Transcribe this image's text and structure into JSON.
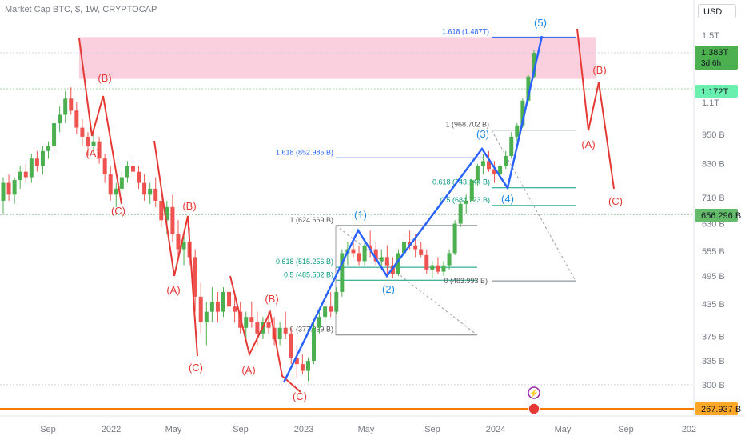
{
  "header": {
    "title": "Market Cap BTC, $, 1W, CRYPTOCAP",
    "currency_button": "USD"
  },
  "colors": {
    "up": "#26a69a",
    "up_bright": "#4caf50",
    "down": "#ef5350",
    "wave_blue": "#2962ff",
    "wave_red": "#e53935",
    "resistance_zone": "#f8bbd0",
    "support_line": "#f57c00",
    "green_level": "#4caf50"
  },
  "chart_data": {
    "type": "candlestick",
    "title": "Market Cap BTC, $, 1W, CRYPTOCAP",
    "y_scale": "log",
    "ylim": [
      282000000000,
      1620000000000
    ],
    "x_tick_labels": [
      "Sep",
      "2022",
      "May",
      "Sep",
      "2023",
      "May",
      "Sep",
      "2024",
      "May",
      "Sep",
      "202"
    ],
    "y_tick_labels": [
      {
        "label": "1.5T",
        "value": 1500000000000.0
      },
      {
        "label": "1.1T",
        "value": 1100000000000.0
      },
      {
        "label": "950 B",
        "value": 950000000000.0
      },
      {
        "label": "830 B",
        "value": 830000000000.0
      },
      {
        "label": "710 B",
        "value": 710000000000.0
      },
      {
        "label": "630 B",
        "value": 630000000000.0
      },
      {
        "label": "555 B",
        "value": 555000000000.0
      },
      {
        "label": "495 B",
        "value": 495000000000.0
      },
      {
        "label": "435 B",
        "value": 435000000000.0
      },
      {
        "label": "375 B",
        "value": 375000000000.0
      },
      {
        "label": "335 B",
        "value": 335000000000.0
      },
      {
        "label": "300 B",
        "value": 300000000000.0
      }
    ],
    "price_badges": [
      {
        "label": "1.383T",
        "sub": "3d 6h",
        "value": 1383000000000.0,
        "color": "#4caf50"
      },
      {
        "label": "1.172T",
        "value": 1172000000000.0,
        "color": "#00e676"
      },
      {
        "label": "656.296 B",
        "value": 656296000000.0,
        "color": "#4caf50"
      },
      {
        "label": "267.937 B",
        "value": 267937000000.0,
        "color": "#ff9800"
      }
    ],
    "fib_labels": [
      {
        "text": "1.618 (1.487T)",
        "color": "#2962ff",
        "value": 1487000000000.0
      },
      {
        "text": "1 (968.702 B)",
        "color": "#555555",
        "value": 968702000000.0
      },
      {
        "text": "1.618 (852.985 B)",
        "color": "#2962ff",
        "value": 852985000000.0
      },
      {
        "text": "0.618 (743.144 B)",
        "color": "#089981",
        "value": 743144000000.0
      },
      {
        "text": "0.5 (684.723 B)",
        "color": "#089981",
        "value": 684723000000.0
      },
      {
        "text": "1 (624.669 B)",
        "color": "#555555",
        "value": 624669000000.0
      },
      {
        "text": "0.618 (515.256 B)",
        "color": "#089981",
        "value": 515256000000.0
      },
      {
        "text": "0.5 (485.502 B)",
        "color": "#089981",
        "value": 485502000000.0
      },
      {
        "text": "0 (483.993 B)",
        "color": "#555555",
        "value": 483993000000.0
      },
      {
        "text": "0 (377.339 B)",
        "color": "#555555",
        "value": 377339000000.0
      }
    ],
    "wave_labels_blue": [
      "(1)",
      "(2)",
      "(3)",
      "(4)",
      "(5)"
    ],
    "wave_labels_red": [
      "(B)",
      "(A)",
      "(C)",
      "(B)",
      "(A)",
      "(C)",
      "(B)",
      "(A)",
      "(C)",
      "(A)",
      "(B)",
      "(C)"
    ],
    "series": [
      {
        "name": "",
        "ohlc_weekly": [
          [
            700,
            780,
            660,
            760
          ],
          [
            760,
            790,
            700,
            720
          ],
          [
            720,
            780,
            690,
            770
          ],
          [
            770,
            820,
            740,
            800
          ],
          [
            800,
            830,
            760,
            780
          ],
          [
            780,
            870,
            760,
            850
          ],
          [
            850,
            880,
            800,
            820
          ],
          [
            820,
            900,
            790,
            880
          ],
          [
            880,
            920,
            850,
            900
          ],
          [
            900,
            1020,
            880,
            1000
          ],
          [
            1000,
            1080,
            960,
            1040
          ],
          [
            1040,
            1160,
            1000,
            1120
          ],
          [
            1120,
            1180,
            1040,
            1060
          ],
          [
            1060,
            1100,
            950,
            980
          ],
          [
            980,
            1020,
            900,
            940
          ],
          [
            940,
            960,
            860,
            900
          ],
          [
            900,
            950,
            870,
            920
          ],
          [
            920,
            940,
            830,
            850
          ],
          [
            850,
            870,
            760,
            790
          ],
          [
            790,
            820,
            700,
            720
          ],
          [
            720,
            760,
            680,
            740
          ],
          [
            740,
            800,
            720,
            780
          ],
          [
            780,
            840,
            760,
            820
          ],
          [
            820,
            860,
            780,
            800
          ],
          [
            800,
            820,
            740,
            760
          ],
          [
            760,
            790,
            700,
            720
          ],
          [
            720,
            760,
            690,
            740
          ],
          [
            740,
            780,
            680,
            700
          ],
          [
            700,
            730,
            620,
            640
          ],
          [
            640,
            700,
            600,
            680
          ],
          [
            680,
            720,
            580,
            600
          ],
          [
            600,
            640,
            540,
            560
          ],
          [
            560,
            600,
            520,
            580
          ],
          [
            580,
            620,
            520,
            540
          ],
          [
            540,
            560,
            420,
            450
          ],
          [
            450,
            480,
            380,
            400
          ],
          [
            400,
            440,
            360,
            420
          ],
          [
            420,
            470,
            400,
            440
          ],
          [
            440,
            460,
            400,
            420
          ],
          [
            420,
            470,
            410,
            460
          ],
          [
            460,
            480,
            420,
            430
          ],
          [
            430,
            450,
            400,
            420
          ],
          [
            420,
            440,
            380,
            390
          ],
          [
            390,
            420,
            370,
            410
          ],
          [
            410,
            440,
            390,
            400
          ],
          [
            400,
            420,
            360,
            380
          ],
          [
            380,
            410,
            370,
            400
          ],
          [
            400,
            420,
            380,
            390
          ],
          [
            390,
            410,
            360,
            370
          ],
          [
            370,
            400,
            360,
            390
          ],
          [
            390,
            420,
            370,
            380
          ],
          [
            380,
            390,
            330,
            340
          ],
          [
            340,
            360,
            310,
            330
          ],
          [
            330,
            345,
            315,
            320
          ],
          [
            320,
            340,
            305,
            335
          ],
          [
            335,
            400,
            330,
            390
          ],
          [
            390,
            420,
            380,
            410
          ],
          [
            410,
            440,
            400,
            430
          ],
          [
            430,
            460,
            410,
            420
          ],
          [
            420,
            470,
            415,
            460
          ],
          [
            460,
            560,
            450,
            550
          ],
          [
            550,
            580,
            520,
            560
          ],
          [
            560,
            590,
            540,
            550
          ],
          [
            550,
            570,
            520,
            530
          ],
          [
            530,
            580,
            520,
            570
          ],
          [
            570,
            610,
            540,
            560
          ],
          [
            560,
            580,
            520,
            530
          ],
          [
            530,
            560,
            510,
            540
          ],
          [
            540,
            570,
            500,
            520
          ],
          [
            520,
            540,
            490,
            500
          ],
          [
            500,
            560,
            495,
            550
          ],
          [
            550,
            600,
            540,
            580
          ],
          [
            580,
            610,
            560,
            570
          ],
          [
            570,
            600,
            540,
            560
          ],
          [
            560,
            580,
            540,
            545
          ],
          [
            545,
            560,
            500,
            510
          ],
          [
            510,
            530,
            490,
            520
          ],
          [
            520,
            540,
            500,
            505
          ],
          [
            505,
            530,
            495,
            520
          ],
          [
            520,
            560,
            510,
            550
          ],
          [
            550,
            640,
            545,
            630
          ],
          [
            630,
            700,
            620,
            690
          ],
          [
            690,
            720,
            660,
            700
          ],
          [
            700,
            780,
            690,
            770
          ],
          [
            770,
            830,
            750,
            820
          ],
          [
            820,
            870,
            790,
            840
          ],
          [
            840,
            880,
            800,
            810
          ],
          [
            810,
            840,
            760,
            790
          ],
          [
            790,
            830,
            770,
            820
          ],
          [
            820,
            880,
            810,
            860
          ],
          [
            860,
            960,
            850,
            940
          ],
          [
            940,
            1000,
            920,
            990
          ],
          [
            990,
            1120,
            980,
            1110
          ],
          [
            1110,
            1250,
            1100,
            1240
          ],
          [
            1240,
            1400,
            1230,
            1383
          ]
        ]
      }
    ]
  }
}
